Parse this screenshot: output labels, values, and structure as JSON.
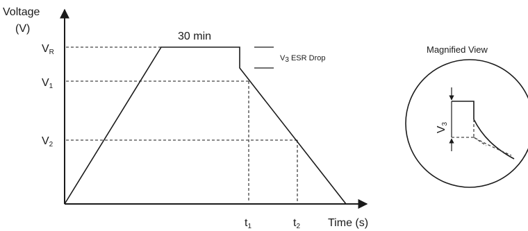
{
  "diagram": {
    "y_axis_label_line1": "Voltage",
    "y_axis_label_line2": "(V)",
    "x_axis_label": "Time (s)",
    "plateau_label": "30 min",
    "levels": {
      "vr": {
        "main": "V",
        "sub": "R"
      },
      "v1": {
        "main": "V",
        "sub": "1"
      },
      "v2": {
        "main": "V",
        "sub": "2"
      }
    },
    "times": {
      "t1": {
        "main": "t",
        "sub": "1"
      },
      "t2": {
        "main": "t",
        "sub": "2"
      }
    },
    "esr": {
      "main": "V",
      "sub": "3",
      "rest": " ESR Drop"
    },
    "magnified_title": "Magnified View",
    "magnified_v3": {
      "main": "V",
      "sub": "3"
    }
  }
}
